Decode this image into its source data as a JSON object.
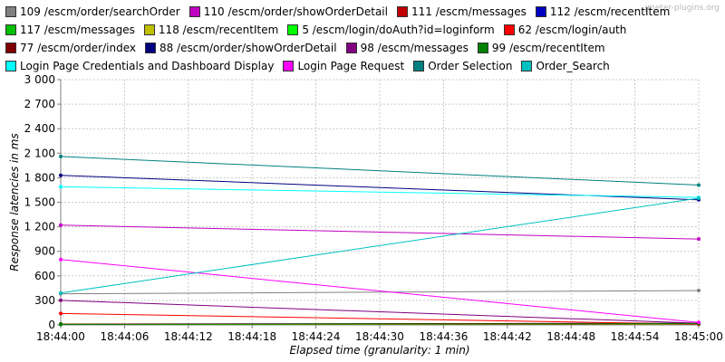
{
  "watermark": "jmeter-plugins.org",
  "chart_data": {
    "type": "line",
    "xlabel": "Elapsed time (granularity: 1 min)",
    "ylabel": "Response latencies in ms",
    "ylim": [
      0,
      3000
    ],
    "y_ticks": [
      "0",
      "300",
      "600",
      "900",
      "1 200",
      "1 500",
      "1 800",
      "2 100",
      "2 400",
      "2 700",
      "3 000"
    ],
    "x_ticks": [
      "18:44:00",
      "18:44:06",
      "18:44:12",
      "18:44:18",
      "18:44:24",
      "18:44:30",
      "18:44:36",
      "18:44:42",
      "18:44:48",
      "18:44:54",
      "18:45:00"
    ],
    "x": [
      "18:44:00",
      "18:45:00"
    ],
    "grid": true,
    "legend_placement": "top",
    "series": [
      {
        "name": "109 /escm/order/searchOrder",
        "color": "#808080",
        "values": [
          380,
          420
        ]
      },
      {
        "name": "110 /escm/order/showOrderDetail",
        "color": "#c000c0",
        "values": [
          1220,
          1050
        ]
      },
      {
        "name": "111 /escm/messages",
        "color": "#c00000",
        "values": [
          5,
          8
        ]
      },
      {
        "name": "112 /escm/recentItem",
        "color": "#0000c0",
        "values": [
          10,
          20
        ]
      },
      {
        "name": "117 /escm/messages",
        "color": "#00c000",
        "values": [
          8,
          12
        ]
      },
      {
        "name": "118 /escm/recentItem",
        "color": "#c0c000",
        "values": [
          5,
          10
        ]
      },
      {
        "name": "5 /escm/login/doAuth?id=loginform",
        "color": "#00ff00",
        "values": [
          10,
          15
        ]
      },
      {
        "name": "62 /escm/login/auth",
        "color": "#ff0000",
        "values": [
          140,
          10
        ]
      },
      {
        "name": "77 /escm/order/index",
        "color": "#800000",
        "values": [
          10,
          20
        ]
      },
      {
        "name": "88 /escm/order/showOrderDetail",
        "color": "#000080",
        "values": [
          1830,
          1530
        ]
      },
      {
        "name": "98 /escm/messages",
        "color": "#800080",
        "values": [
          300,
          20
        ]
      },
      {
        "name": "99 /escm/recentItem",
        "color": "#008000",
        "values": [
          5,
          15
        ]
      },
      {
        "name": "Login Page Credentials and Dashboard Display",
        "color": "#00ffff",
        "values": [
          1690,
          1560
        ]
      },
      {
        "name": "Login Page Request",
        "color": "#ff00ff",
        "values": [
          800,
          30
        ]
      },
      {
        "name": "Order Selection",
        "color": "#008080",
        "values": [
          2060,
          1710
        ]
      },
      {
        "name": "Order_Search",
        "color": "#00c0c0",
        "values": [
          390,
          1550
        ]
      }
    ]
  }
}
